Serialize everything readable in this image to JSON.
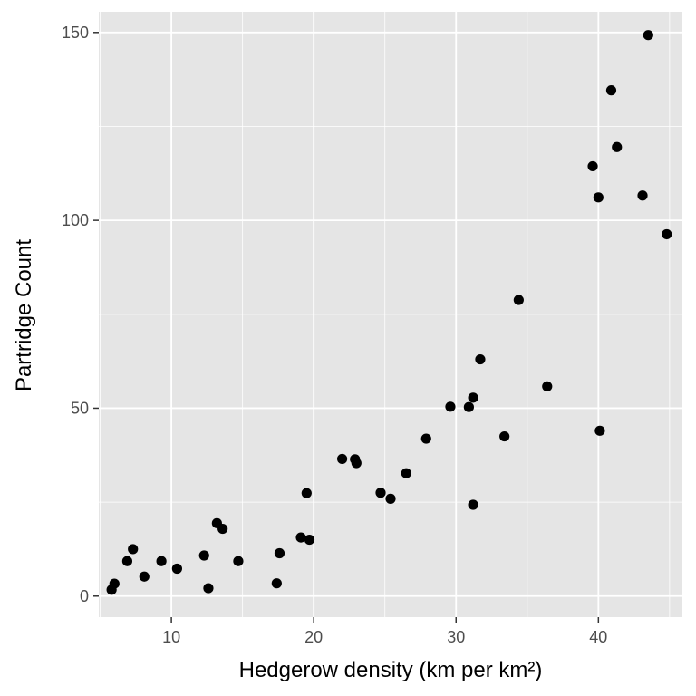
{
  "chart_data": {
    "type": "scatter",
    "title": "",
    "xlabel": "Hedgerow density (km per km²)",
    "ylabel": "Partridge Count",
    "xlim": [
      4.9,
      45.9
    ],
    "ylim": [
      -5.6,
      155.5
    ],
    "x_ticks": [
      10,
      20,
      30,
      40
    ],
    "y_ticks": [
      0,
      50,
      100,
      150
    ],
    "grid": true,
    "legend": "none",
    "colors": {
      "panel": "#e5e5e5",
      "grid": "#ffffff",
      "point": "#000000"
    },
    "points": [
      {
        "x": 5.8,
        "y": 1.7
      },
      {
        "x": 6.0,
        "y": 3.3
      },
      {
        "x": 6.9,
        "y": 9.3
      },
      {
        "x": 7.3,
        "y": 12.5
      },
      {
        "x": 8.1,
        "y": 5.2
      },
      {
        "x": 9.3,
        "y": 9.3
      },
      {
        "x": 10.4,
        "y": 7.3
      },
      {
        "x": 12.3,
        "y": 10.8
      },
      {
        "x": 12.6,
        "y": 2.1
      },
      {
        "x": 13.2,
        "y": 19.4
      },
      {
        "x": 13.6,
        "y": 17.9
      },
      {
        "x": 14.7,
        "y": 9.3
      },
      {
        "x": 17.4,
        "y": 3.4
      },
      {
        "x": 17.6,
        "y": 11.4
      },
      {
        "x": 19.1,
        "y": 15.6
      },
      {
        "x": 19.5,
        "y": 27.4
      },
      {
        "x": 19.7,
        "y": 15.0
      },
      {
        "x": 22.0,
        "y": 36.5
      },
      {
        "x": 22.9,
        "y": 36.4
      },
      {
        "x": 23.0,
        "y": 35.4
      },
      {
        "x": 24.7,
        "y": 27.5
      },
      {
        "x": 25.4,
        "y": 25.9
      },
      {
        "x": 26.5,
        "y": 32.7
      },
      {
        "x": 27.9,
        "y": 41.9
      },
      {
        "x": 29.6,
        "y": 50.4
      },
      {
        "x": 30.9,
        "y": 50.3
      },
      {
        "x": 31.2,
        "y": 52.8
      },
      {
        "x": 31.2,
        "y": 24.3
      },
      {
        "x": 31.7,
        "y": 63.0
      },
      {
        "x": 33.4,
        "y": 42.5
      },
      {
        "x": 34.4,
        "y": 78.8
      },
      {
        "x": 36.4,
        "y": 55.8
      },
      {
        "x": 39.6,
        "y": 114.4
      },
      {
        "x": 40.0,
        "y": 106.1
      },
      {
        "x": 40.1,
        "y": 44.0
      },
      {
        "x": 40.9,
        "y": 134.6
      },
      {
        "x": 41.3,
        "y": 119.5
      },
      {
        "x": 43.1,
        "y": 106.6
      },
      {
        "x": 43.5,
        "y": 149.3
      },
      {
        "x": 44.8,
        "y": 96.3
      }
    ]
  }
}
